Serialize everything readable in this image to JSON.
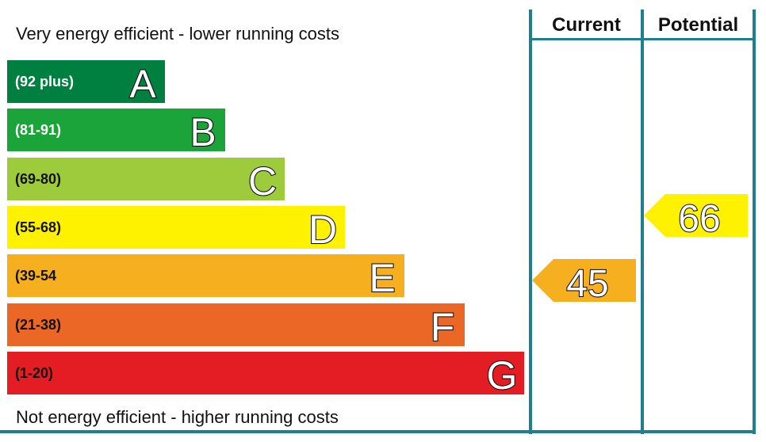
{
  "header": {
    "top_caption": "Very energy efficient - lower running costs",
    "bottom_caption": "Not energy efficient - higher running costs",
    "current_label": "Current",
    "potential_label": "Potential"
  },
  "chart_data": {
    "type": "bar",
    "categories": [
      "A",
      "B",
      "C",
      "D",
      "E",
      "F",
      "G"
    ],
    "bands": [
      {
        "letter": "A",
        "range": "(92 plus)",
        "color": "#008040",
        "range_text_color": "#ffffff"
      },
      {
        "letter": "B",
        "range": "(81-91)",
        "color": "#1aa43a",
        "range_text_color": "#ffffff"
      },
      {
        "letter": "C",
        "range": "(69-80)",
        "color": "#9dcb3c",
        "range_text_color": "#111111"
      },
      {
        "letter": "D",
        "range": "(55-68)",
        "color": "#fff200",
        "range_text_color": "#111111"
      },
      {
        "letter": "E",
        "range": "(39-54",
        "color": "#f6b01f",
        "range_text_color": "#111111"
      },
      {
        "letter": "F",
        "range": "(21-38)",
        "color": "#eb6725",
        "range_text_color": "#111111"
      },
      {
        "letter": "G",
        "range": "(1-20)",
        "color": "#e31d23",
        "range_text_color": "#111111"
      }
    ],
    "current": {
      "value": 45,
      "band": "E",
      "color": "#f6b01f"
    },
    "potential": {
      "value": 66,
      "band": "D",
      "color": "#fff200"
    }
  }
}
